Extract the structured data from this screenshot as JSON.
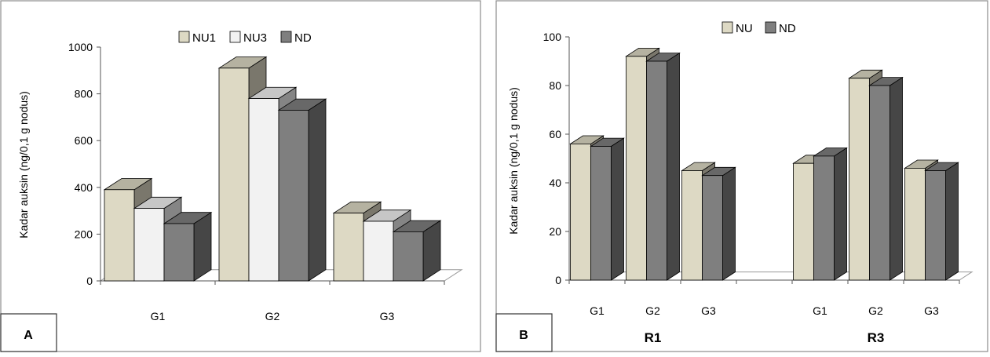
{
  "panels": [
    {
      "panel_label": "A",
      "ylabel": "Kadar auksin (ng/0,1 g nodus)",
      "chart_data": {
        "type": "bar",
        "categories": [
          "G1",
          "G2",
          "G3"
        ],
        "series": [
          {
            "name": "NU1",
            "values": [
              390,
              910,
              290
            ],
            "color": "#ddd9c4"
          },
          {
            "name": "NU3",
            "values": [
              310,
              780,
              255
            ],
            "color": "#f2f2f2"
          },
          {
            "name": "ND",
            "values": [
              245,
              730,
              210
            ],
            "color": "#7f7f7f"
          }
        ],
        "title": "",
        "xlabel": "",
        "ylabel": "Kadar auksin (ng/0,1 g nodus)",
        "ylim": [
          0,
          1000
        ],
        "yticks": [
          0,
          200,
          400,
          600,
          800,
          1000
        ],
        "legend": "top",
        "grid": false,
        "style": "3d-column"
      }
    },
    {
      "panel_label": "B",
      "ylabel": "Kadar auksin (ng/0,1 g nodus)",
      "chart_data": {
        "type": "bar",
        "categories": [
          "G1",
          "G2",
          "G3",
          "",
          "G1",
          "G2",
          "G3"
        ],
        "groups": [
          "R1",
          "R3"
        ],
        "series": [
          {
            "name": "NU",
            "values": [
              56,
              92,
              45,
              null,
              48,
              83,
              46
            ],
            "color": "#ddd9c4"
          },
          {
            "name": "ND",
            "values": [
              55,
              90,
              43,
              null,
              51,
              80,
              45
            ],
            "color": "#7f7f7f"
          }
        ],
        "title": "",
        "xlabel": "",
        "ylabel": "Kadar auksin (ng/0,1 g nodus)",
        "ylim": [
          0,
          100
        ],
        "yticks": [
          0,
          20,
          40,
          60,
          80,
          100
        ],
        "legend": "top",
        "grid": false,
        "style": "3d-column"
      }
    }
  ]
}
